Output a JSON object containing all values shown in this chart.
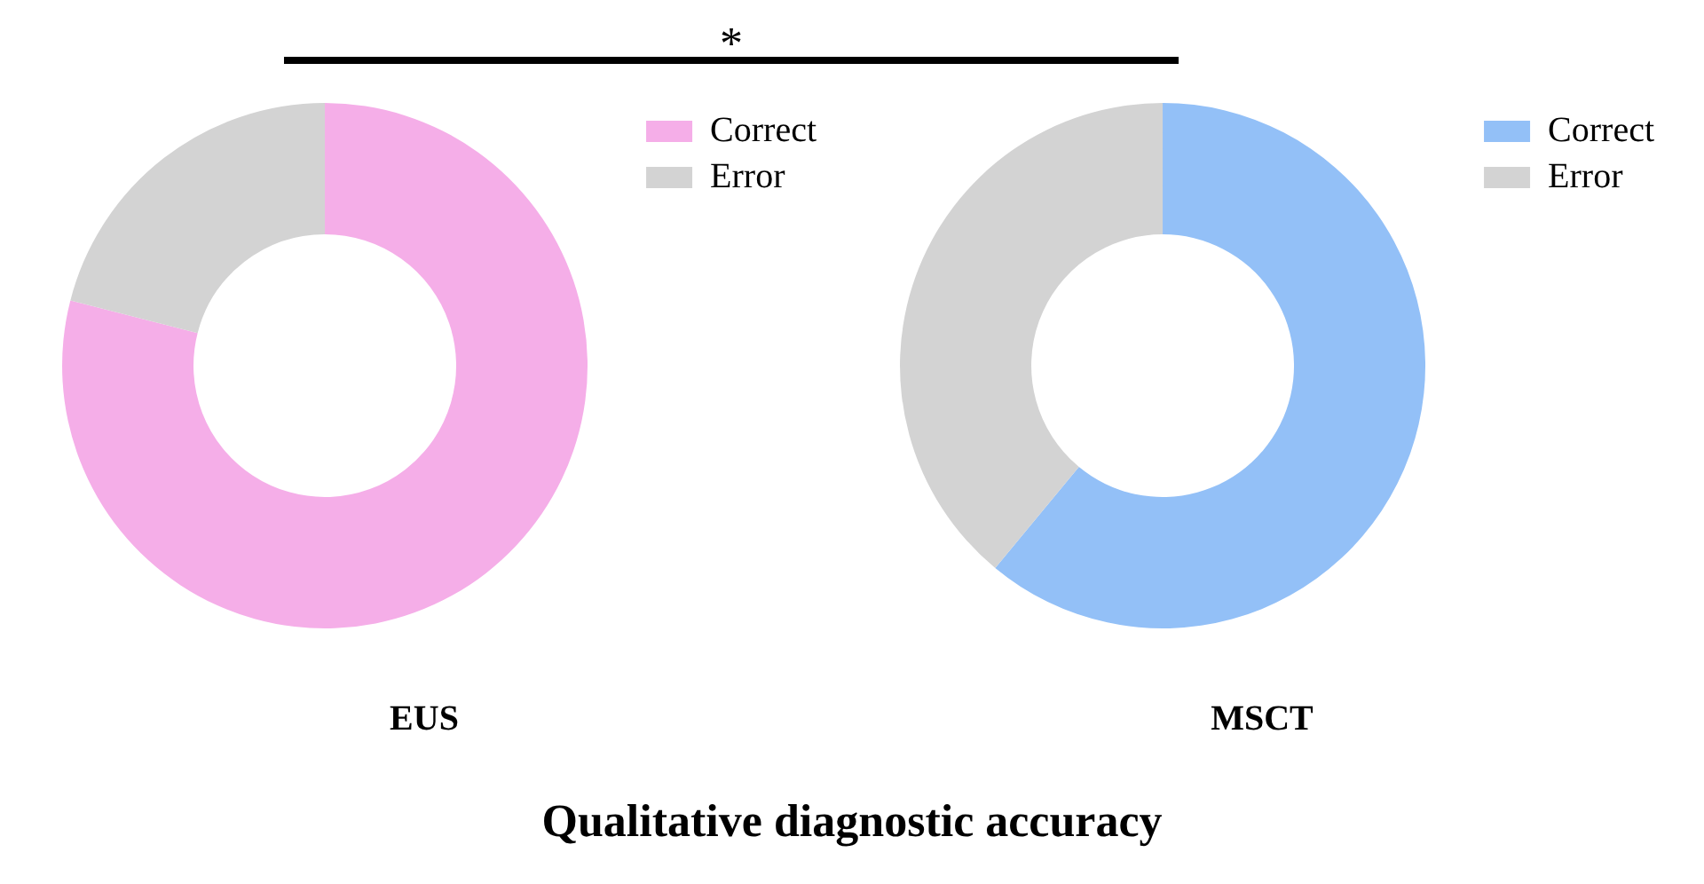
{
  "chart_data": [
    {
      "type": "donut",
      "title": "EUS",
      "categories": [
        "Correct",
        "Error"
      ],
      "values": [
        79,
        21
      ],
      "colors": [
        "#f5aee8",
        "#d3d3d3"
      ],
      "legend": "top right",
      "annotations": [
        "*",
        "Qualitative diagnostic accuracy"
      ]
    },
    {
      "type": "donut",
      "title": "MSCT",
      "categories": [
        "Correct",
        "Error"
      ],
      "values": [
        61,
        39
      ],
      "colors": [
        "#93c0f7",
        "#d3d3d3"
      ],
      "legend": "top right"
    }
  ]
}
